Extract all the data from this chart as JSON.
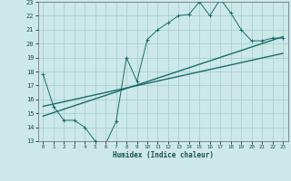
{
  "title": "",
  "xlabel": "Humidex (Indice chaleur)",
  "ylabel": "",
  "xlim": [
    -0.5,
    23.5
  ],
  "ylim": [
    13,
    23
  ],
  "yticks": [
    13,
    14,
    15,
    16,
    17,
    18,
    19,
    20,
    21,
    22,
    23
  ],
  "xticks": [
    0,
    1,
    2,
    3,
    4,
    5,
    6,
    7,
    8,
    9,
    10,
    11,
    12,
    13,
    14,
    15,
    16,
    17,
    18,
    19,
    20,
    21,
    22,
    23
  ],
  "bg_color": "#cce8e8",
  "grid_color": "#aacfcf",
  "line_color": "#1a6b6b",
  "line1_x": [
    0,
    1,
    2,
    3,
    4,
    5,
    6,
    7,
    8,
    9,
    10,
    11,
    12,
    13,
    14,
    15,
    16,
    17,
    18,
    19,
    20,
    21,
    22,
    23
  ],
  "line1_y": [
    17.8,
    15.5,
    14.5,
    14.5,
    14.0,
    13.0,
    12.8,
    14.4,
    19.0,
    17.3,
    20.3,
    21.0,
    21.5,
    22.0,
    22.1,
    23.0,
    22.0,
    23.2,
    22.2,
    21.0,
    20.2,
    20.2,
    20.4,
    20.4
  ],
  "line2_x": [
    0,
    23
  ],
  "line2_y": [
    14.8,
    20.5
  ],
  "line3_x": [
    0,
    23
  ],
  "line3_y": [
    15.5,
    19.3
  ]
}
